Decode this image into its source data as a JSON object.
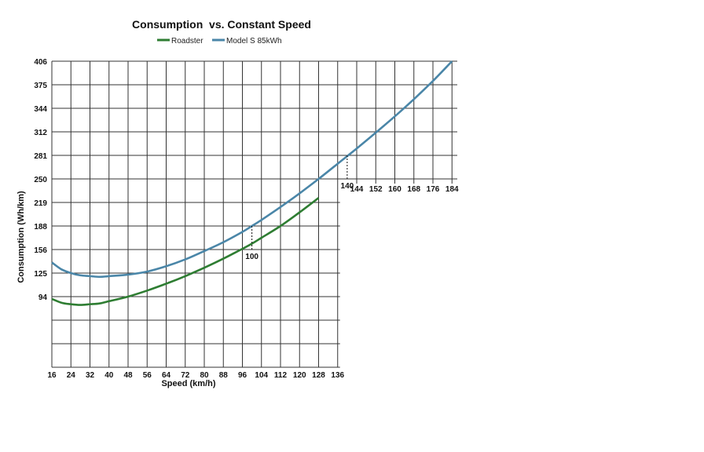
{
  "chart_data": {
    "type": "line",
    "title": "Consumption  vs. Constant Speed",
    "xlabel": "Speed (km/h)",
    "ylabel": "Consumption (Wh/km)",
    "xlim": [
      16,
      184
    ],
    "ylim": [
      0,
      406
    ],
    "grid": true,
    "legend_position": "top-center",
    "x_ticks": [
      16,
      24,
      32,
      40,
      48,
      56,
      64,
      72,
      80,
      88,
      96,
      104,
      112,
      120,
      128,
      136,
      144,
      152,
      160,
      168,
      176,
      184
    ],
    "y_ticks": [
      94,
      125,
      156,
      188,
      219,
      250,
      281,
      312,
      344,
      375,
      406
    ],
    "series": [
      {
        "name": "Roadster",
        "color": "#2e7d32",
        "x": [
          16,
          20,
          24,
          28,
          32,
          36,
          40,
          48,
          56,
          64,
          72,
          80,
          88,
          96,
          100,
          104,
          112,
          120,
          128
        ],
        "y": [
          91,
          86,
          84,
          83,
          84,
          85,
          88,
          94,
          102,
          111,
          121,
          132,
          144,
          157,
          164,
          172,
          188,
          206,
          225
        ]
      },
      {
        "name": "Model S 85kWh",
        "color": "#4a86a8",
        "x": [
          16,
          20,
          24,
          28,
          32,
          36,
          40,
          48,
          56,
          64,
          72,
          80,
          88,
          96,
          100,
          104,
          112,
          120,
          128,
          136,
          140,
          144,
          152,
          160,
          168,
          176,
          184
        ],
        "y": [
          139,
          130,
          125,
          122,
          121,
          120,
          121,
          123,
          127,
          134,
          143,
          154,
          166,
          180,
          188,
          196,
          213,
          231,
          250,
          270,
          280,
          290,
          311,
          333,
          356,
          380,
          406
        ]
      }
    ],
    "annotations": [
      {
        "label": "100",
        "x": 100,
        "y": 188
      },
      {
        "label": "140",
        "x": 140,
        "y": 281
      }
    ]
  }
}
